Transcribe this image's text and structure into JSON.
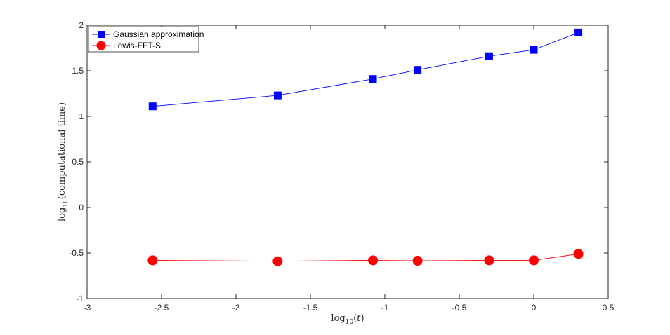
{
  "chart_data": {
    "type": "line",
    "xlabel": "log10(t)",
    "ylabel": "log10(computational time)",
    "xlim": [
      -3,
      0.5
    ],
    "ylim": [
      -1,
      2
    ],
    "xticks": [
      -3,
      -2.5,
      -2,
      -1.5,
      -1,
      -0.5,
      0,
      0.5
    ],
    "yticks": [
      -1,
      -0.5,
      0,
      0.5,
      1,
      1.5,
      2
    ],
    "xtick_labels": [
      "-3",
      "-2.5",
      "-2",
      "-1.5",
      "-1",
      "-0.5",
      "0",
      "0.5"
    ],
    "ytick_labels": [
      "-1",
      "-0.5",
      "0",
      "0.5",
      "1",
      "1.5",
      "2"
    ],
    "grid": false,
    "legend_position": "top-left",
    "x": [
      -2.56,
      -1.72,
      -1.08,
      -0.78,
      -0.3,
      0,
      0.3
    ],
    "series": [
      {
        "name": "Gaussian approximation",
        "color": "#0000ff",
        "marker": "square",
        "values": [
          1.11,
          1.23,
          1.41,
          1.51,
          1.66,
          1.73,
          1.92
        ]
      },
      {
        "name": "Lewis-FFT-S",
        "color": "#ff0000",
        "marker": "circle",
        "values": [
          -0.58,
          -0.59,
          -0.58,
          -0.585,
          -0.58,
          -0.58,
          -0.51
        ]
      }
    ]
  }
}
